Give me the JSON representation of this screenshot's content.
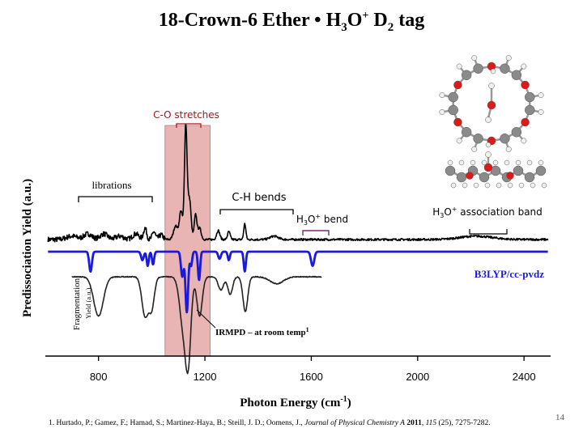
{
  "slide": {
    "title_main": "18-Crown-6 Ether • H",
    "title_sub1": "3",
    "title_o": "O",
    "title_sup": "+",
    "title_d": " D",
    "title_sub2": "2",
    "title_tag": " tag",
    "page_number": "14",
    "reference": {
      "authors": "1. Hurtado, P.; Gamez, F.; Hamad, S.; Martinez-Haya, B.; Steill, J. D.; Oomens, J., ",
      "journal": "Journal of Physical Chemistry A",
      "year": " 2011",
      "volume": ", 115",
      "pages": " (25), 7275-7282."
    }
  },
  "chart_data": {
    "type": "line",
    "title": "18-Crown-6 Ether • H3O+ D2 tag",
    "xlabel_main": "Photon Energy (cm",
    "xlabel_sup": "-1",
    "xlabel_end": ")",
    "ylabel": "Predissociation Yield (a.u.)",
    "ylabel_lower_1": "Fragmentation",
    "ylabel_lower_2": "Yield (a.u.)",
    "xlim": [
      600,
      2500
    ],
    "xticks": [
      "800",
      "1200",
      "1600",
      "2000",
      "2400"
    ],
    "xtick_values": [
      800,
      1200,
      1600,
      2000,
      2400
    ],
    "highlight_region": [
      1050,
      1220
    ],
    "annotations": {
      "co_stretches": "C-O stretches",
      "librations": "librations",
      "ch_bends": "C-H bends",
      "h3o_bend_pre": "H",
      "h3o_bend_sub": "3",
      "h3o_bend_post": "O",
      "h3o_bend_sup": "+",
      "h3o_bend_end": " bend",
      "assoc_pre": "H",
      "assoc_sub": "3",
      "assoc_post": "O",
      "assoc_sup": "+",
      "assoc_end": " association band",
      "theory": "B3LYP/cc-pvdz",
      "irmpd_main": "IRMPD – at room temp",
      "irmpd_sup": "1"
    },
    "series": [
      {
        "name": "Predissociation (D2 tag)",
        "color": "#000000",
        "baseline": 0,
        "peaks": [
          {
            "x": 700,
            "h": 0.03,
            "w": 20
          },
          {
            "x": 760,
            "h": 0.05,
            "w": 15
          },
          {
            "x": 820,
            "h": 0.05,
            "w": 14
          },
          {
            "x": 880,
            "h": 0.03,
            "w": 15
          },
          {
            "x": 940,
            "h": 0.05,
            "w": 12
          },
          {
            "x": 975,
            "h": 0.1,
            "w": 6
          },
          {
            "x": 1008,
            "h": 0.07,
            "w": 6
          },
          {
            "x": 1035,
            "h": 0.04,
            "w": 8
          },
          {
            "x": 1090,
            "h": 0.12,
            "w": 8
          },
          {
            "x": 1110,
            "h": 0.25,
            "w": 6
          },
          {
            "x": 1128,
            "h": 1.0,
            "w": 5
          },
          {
            "x": 1142,
            "h": 0.35,
            "w": 6
          },
          {
            "x": 1165,
            "h": 0.22,
            "w": 5
          },
          {
            "x": 1180,
            "h": 0.1,
            "w": 6
          },
          {
            "x": 1250,
            "h": 0.08,
            "w": 6
          },
          {
            "x": 1290,
            "h": 0.07,
            "w": 5
          },
          {
            "x": 1350,
            "h": 0.14,
            "w": 4
          },
          {
            "x": 1460,
            "h": 0.03,
            "w": 15
          },
          {
            "x": 2220,
            "h": 0.03,
            "w": 60
          }
        ]
      },
      {
        "name": "B3LYP/cc-pvdz",
        "color": "#1a1adc",
        "baseline": 0,
        "peaks": [
          {
            "x": 770,
            "h": 0.28,
            "w": 5
          },
          {
            "x": 965,
            "h": 0.12,
            "w": 5
          },
          {
            "x": 985,
            "h": 0.2,
            "w": 4
          },
          {
            "x": 1005,
            "h": 0.18,
            "w": 4
          },
          {
            "x": 1115,
            "h": 0.35,
            "w": 5
          },
          {
            "x": 1132,
            "h": 0.85,
            "w": 5
          },
          {
            "x": 1148,
            "h": 0.2,
            "w": 4
          },
          {
            "x": 1178,
            "h": 0.4,
            "w": 4
          },
          {
            "x": 1255,
            "h": 0.1,
            "w": 5
          },
          {
            "x": 1290,
            "h": 0.12,
            "w": 4
          },
          {
            "x": 1350,
            "h": 0.28,
            "w": 4
          },
          {
            "x": 1605,
            "h": 0.2,
            "w": 6
          }
        ]
      },
      {
        "name": "IRMPD",
        "color": "#222222",
        "baseline": 0,
        "peaks": [
          {
            "x": 800,
            "h": 0.45,
            "w": 18
          },
          {
            "x": 975,
            "h": 0.45,
            "w": 12
          },
          {
            "x": 1000,
            "h": 0.35,
            "w": 10
          },
          {
            "x": 1120,
            "h": 0.6,
            "w": 14
          },
          {
            "x": 1138,
            "h": 0.8,
            "w": 10
          },
          {
            "x": 1180,
            "h": 0.45,
            "w": 10
          },
          {
            "x": 1260,
            "h": 0.15,
            "w": 10
          },
          {
            "x": 1295,
            "h": 0.2,
            "w": 9
          },
          {
            "x": 1352,
            "h": 0.4,
            "w": 9
          },
          {
            "x": 1470,
            "h": 0.08,
            "w": 25
          }
        ]
      }
    ]
  },
  "colors": {
    "highlight": "#e8b4b4",
    "highlight_edge": "#c07878",
    "label_red": "#a0141e",
    "assoc_bracket": "#7a2a6a",
    "axis": "#000000"
  }
}
